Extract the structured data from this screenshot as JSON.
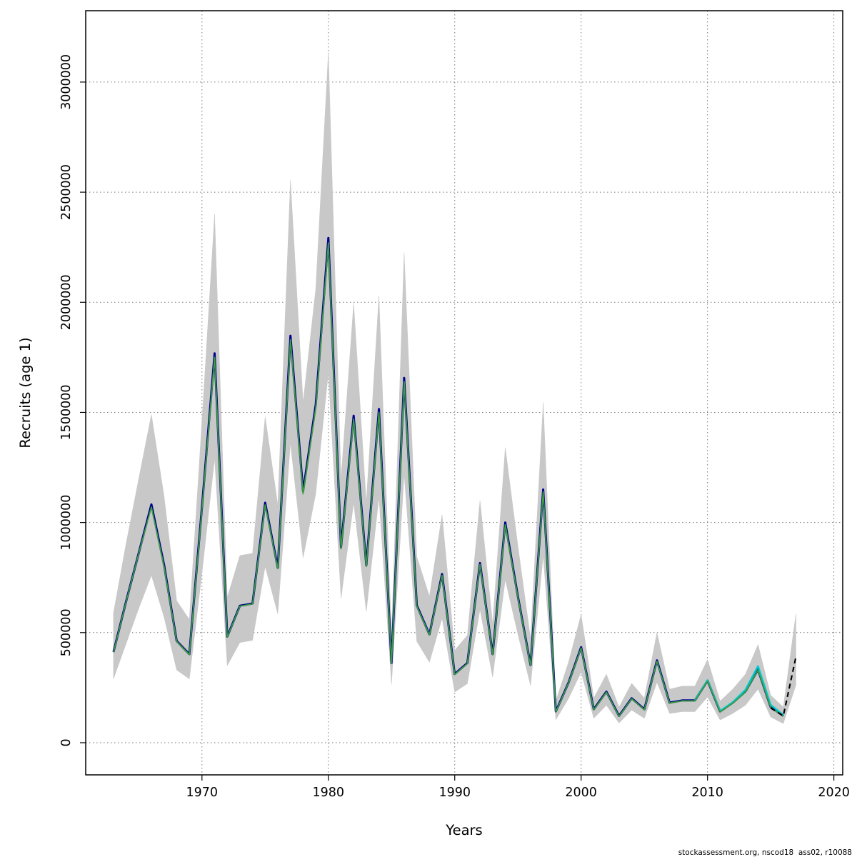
{
  "watermark": "stockassessment.org, nscod18  ass02, r10088",
  "chart_data": {
    "type": "line",
    "title": "",
    "xlabel": "Years",
    "ylabel": "Recruits (age 1)",
    "x_ticks": [
      1970,
      1980,
      1990,
      2000,
      2010,
      2020
    ],
    "y_ticks": [
      0,
      500000,
      1000000,
      1500000,
      2000000,
      2500000,
      3000000
    ],
    "xlim": [
      1960.8,
      2020.7
    ],
    "ylim": [
      -146000,
      3324000
    ],
    "grid": "dotted",
    "background": "#ffffff",
    "band": {
      "color": "#c8c8c8",
      "x": [
        1963,
        1964,
        1965,
        1966,
        1967,
        1968,
        1969,
        1970,
        1971,
        1972,
        1973,
        1974,
        1975,
        1976,
        1977,
        1978,
        1979,
        1980,
        1981,
        1982,
        1983,
        1984,
        1985,
        1986,
        1987,
        1988,
        1989,
        1990,
        1991,
        1992,
        1993,
        1994,
        1995,
        1996,
        1997,
        1998,
        1999,
        2000,
        2001,
        2002,
        2003,
        2004,
        2005,
        2006,
        2007,
        2008,
        2009,
        2010,
        2011,
        2012,
        2013,
        2014,
        2015,
        2016,
        2017
      ],
      "lower": [
        290000,
        450000,
        610000,
        760000,
        570000,
        330000,
        290000,
        770000,
        1290000,
        350000,
        455000,
        465000,
        800000,
        585000,
        1360000,
        840000,
        1130000,
        1680000,
        655000,
        1090000,
        595000,
        1115000,
        265000,
        1220000,
        460000,
        365000,
        565000,
        230000,
        268000,
        605000,
        298000,
        740000,
        492000,
        260000,
        850000,
        104000,
        200000,
        320000,
        111000,
        170000,
        89000,
        148000,
        111000,
        274000,
        133000,
        141000,
        141000,
        207000,
        103000,
        133000,
        170000,
        243000,
        117000,
        87000,
        262000
      ],
      "upper": [
        590000,
        905000,
        1200000,
        1490000,
        1120000,
        645000,
        560000,
        1460000,
        2400000,
        660000,
        850000,
        860000,
        1480000,
        1080000,
        2555000,
        1545000,
        2060000,
        3135000,
        1200000,
        1995000,
        1090000,
        2030000,
        490000,
        2225000,
        845000,
        665000,
        1035000,
        420000,
        488000,
        1100000,
        542000,
        1340000,
        893000,
        473000,
        1545000,
        190000,
        365000,
        582000,
        203000,
        311000,
        162000,
        270000,
        203000,
        500000,
        243000,
        257000,
        257000,
        378000,
        189000,
        243000,
        311000,
        446000,
        216000,
        162000,
        585000
      ]
    },
    "series": [
      {
        "name": "fit-darkblue",
        "color": "#00008b",
        "width": 3,
        "dash": null,
        "x": [
          1963,
          1964,
          1965,
          1966,
          1967,
          1968,
          1969,
          1970,
          1971,
          1972,
          1973,
          1974,
          1975,
          1976,
          1977,
          1978,
          1979,
          1980,
          1981,
          1982,
          1983,
          1984,
          1985,
          1986,
          1987,
          1988,
          1989,
          1990,
          1991,
          1992,
          1993,
          1994,
          1995,
          1996,
          1997,
          1998,
          1999,
          2000,
          2001,
          2002,
          2003,
          2004,
          2005,
          2006,
          2007,
          2008,
          2009,
          2010,
          2011,
          2012,
          2013,
          2014,
          2015,
          2016
        ],
        "values": [
          412000,
          642000,
          862000,
          1082000,
          808000,
          462000,
          402000,
          1070000,
          1768000,
          482000,
          622000,
          632000,
          1090000,
          794000,
          1848000,
          1142000,
          1535000,
          2292000,
          888000,
          1485000,
          806000,
          1515000,
          362000,
          1656000,
          624000,
          492000,
          766000,
          312000,
          362000,
          816000,
          402000,
          1000000,
          664000,
          352000,
          1150000,
          142000,
          272000,
          434000,
          152000,
          232000,
          122000,
          202000,
          152000,
          374000,
          182000,
          192000,
          192000,
          282000,
          142000,
          182000,
          232000,
          332000,
          162000,
          122000
        ]
      },
      {
        "name": "fit-cyan",
        "color": "#00c8d0",
        "width": 2.4,
        "dash": null,
        "x": [
          2009,
          2010,
          2011,
          2012,
          2013,
          2014,
          2015,
          2016
        ],
        "values": [
          192000,
          284000,
          144000,
          184000,
          240000,
          348000,
          172000,
          126000
        ]
      },
      {
        "name": "fit-green",
        "color": "#3aa03a",
        "width": 1.7,
        "dash": null,
        "x": [
          1963,
          1964,
          1965,
          1966,
          1967,
          1968,
          1969,
          1970,
          1971,
          1972,
          1973,
          1974,
          1975,
          1976,
          1977,
          1978,
          1979,
          1980,
          1981,
          1982,
          1983,
          1984,
          1985,
          1986,
          1987,
          1988,
          1989,
          1990,
          1991,
          1992,
          1993,
          1994,
          1995,
          1996,
          1997,
          1998,
          1999,
          2000,
          2001,
          2002,
          2003,
          2004,
          2005,
          2006,
          2007,
          2008,
          2009,
          2010,
          2011,
          2012,
          2013,
          2014,
          2015,
          2016
        ],
        "values": [
          410000,
          640000,
          860000,
          1070000,
          800000,
          460000,
          400000,
          1060000,
          1750000,
          480000,
          620000,
          630000,
          1080000,
          790000,
          1830000,
          1130000,
          1520000,
          2270000,
          880000,
          1470000,
          800000,
          1500000,
          360000,
          1640000,
          620000,
          490000,
          760000,
          310000,
          360000,
          810000,
          400000,
          990000,
          660000,
          350000,
          1140000,
          140000,
          270000,
          430000,
          150000,
          230000,
          120000,
          200000,
          150000,
          370000,
          180000,
          190000,
          190000,
          280000,
          140000,
          180000,
          230000,
          330000,
          160000,
          120000
        ]
      },
      {
        "name": "forecast-black-dashed",
        "color": "#000000",
        "width": 2.1,
        "dash": "7 5",
        "x": [
          2015,
          2016,
          2017
        ],
        "values": [
          158000,
          122000,
          390000
        ]
      }
    ]
  }
}
